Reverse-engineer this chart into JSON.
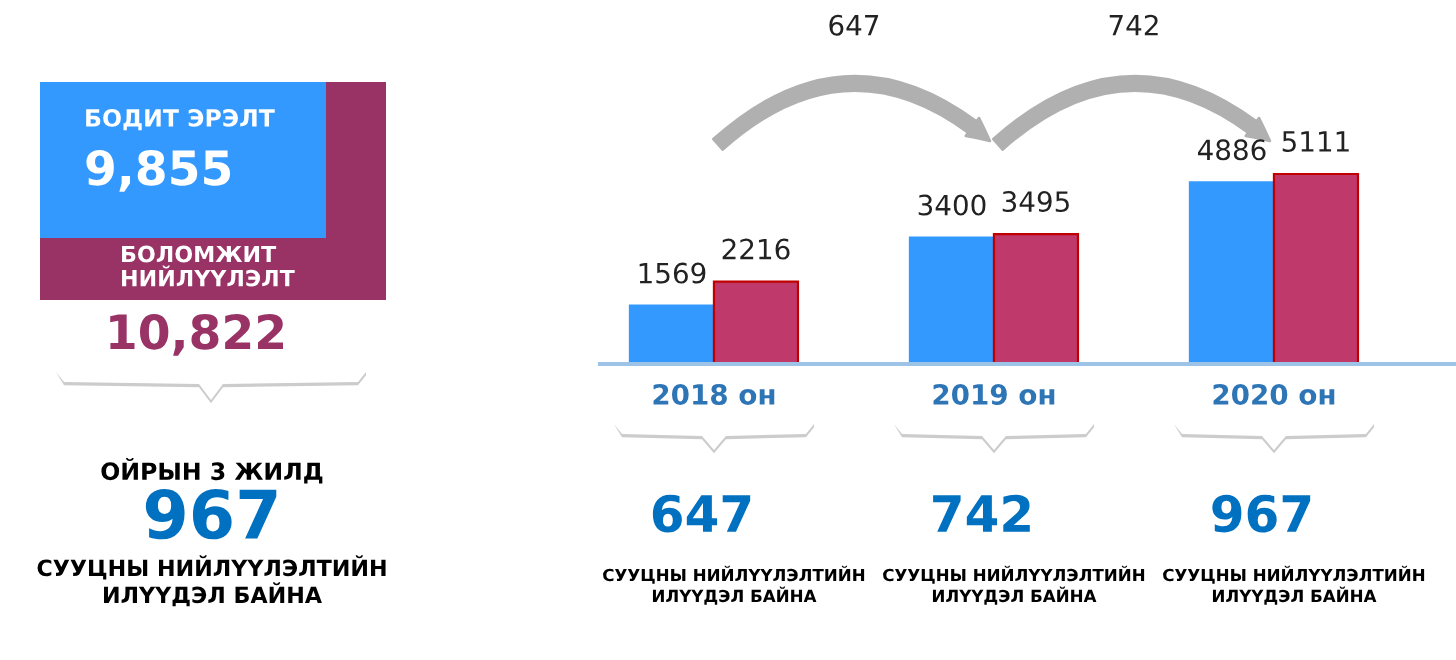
{
  "chart_data": [
    {
      "type": "other",
      "colors": [
        "#3399ff",
        "#993366"
      ],
      "annotations": [
        "БОДИТ ЭРЭЛТ",
        "9,855",
        "БОЛОМЖИТ\nНИЙЛҮҮЛЭЛТ",
        "10,822",
        "ОЙРЫН 3 ЖИЛД",
        "967",
        "СУУЦНЫ НИЙЛҮҮЛЭЛТИЙН\nИЛҮҮДЭЛ БАЙНА"
      ]
    },
    {
      "type": "bar",
      "categories": [
        "2018 он",
        "2019 он",
        "2020 он"
      ],
      "series": [
        {
          "color": "#3399ff",
          "values": [
            1569,
            3400,
            4886
          ]
        },
        {
          "color": "#c0396b",
          "values": [
            2216,
            3495,
            5111
          ]
        }
      ],
      "data_labels": true,
      "grid": false,
      "annotations": [
        "647",
        "742",
        "647",
        "СУУЦНЫ НИЙЛҮҮЛЭЛТИЙН\nИЛҮҮДЭЛ БАЙНА",
        "742",
        "СУУЦНЫ НИЙЛҮҮЛЭЛТИЙН\nИЛҮҮДЭЛ БАЙНА",
        "967",
        "СУУЦНЫ НИЙЛҮҮЛЭЛТИЙН\nИЛҮҮДЭЛ БАЙНА"
      ]
    }
  ]
}
